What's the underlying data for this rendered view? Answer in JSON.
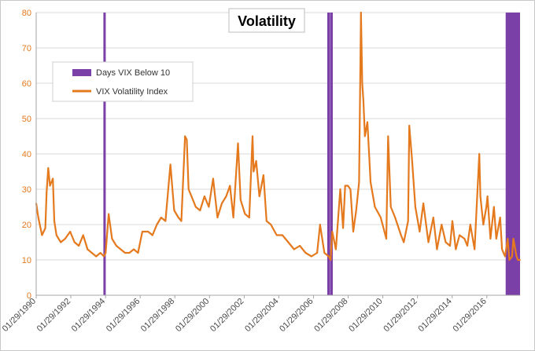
{
  "chart_data": {
    "type": "line",
    "title": "Volatility",
    "xlabel": "",
    "ylabel": "",
    "ylim": [
      0,
      80
    ],
    "yticks": [
      0,
      10,
      20,
      30,
      40,
      50,
      60,
      70,
      80
    ],
    "xlim": [
      "1990-01-29",
      "2017-12-29"
    ],
    "xticks": [
      "01/29/1990",
      "01/29/1992",
      "01/29/1994",
      "01/29/1996",
      "01/29/1998",
      "01/29/2000",
      "01/29/2002",
      "01/29/2004",
      "01/29/2006",
      "01/29/2008",
      "01/29/2010",
      "01/29/2012",
      "01/29/2014",
      "01/29/2016"
    ],
    "grid": true,
    "legend_position": "top-left",
    "colors": {
      "vix": "#e4791e",
      "below10": "#7b3fa8",
      "tick_text": "#e4791e",
      "grid": "#d9d9d9"
    },
    "series": [
      {
        "name": "VIX Volatility Index",
        "kind": "line",
        "x": [
          "1990-01-29",
          "1990-03-15",
          "1990-06-01",
          "1990-08-10",
          "1990-09-05",
          "1990-10-10",
          "1990-11-15",
          "1991-01-15",
          "1991-02-15",
          "1991-04-01",
          "1991-07-01",
          "1991-10-01",
          "1992-01-15",
          "1992-04-15",
          "1992-07-15",
          "1992-10-15",
          "1993-01-15",
          "1993-04-15",
          "1993-07-15",
          "1993-10-15",
          "1993-12-27",
          "1994-02-01",
          "1994-04-05",
          "1994-06-15",
          "1994-09-15",
          "1994-12-15",
          "1995-03-15",
          "1995-06-15",
          "1995-09-15",
          "1995-12-15",
          "1996-03-15",
          "1996-07-15",
          "1996-10-15",
          "1997-01-15",
          "1997-04-15",
          "1997-07-15",
          "1997-10-28",
          "1998-01-15",
          "1998-04-15",
          "1998-06-15",
          "1998-08-31",
          "1998-10-08",
          "1998-11-15",
          "1999-01-15",
          "1999-04-15",
          "1999-07-15",
          "1999-10-15",
          "2000-01-15",
          "2000-04-14",
          "2000-07-15",
          "2000-10-15",
          "2001-01-15",
          "2001-04-04",
          "2001-06-15",
          "2001-09-21",
          "2001-11-15",
          "2002-02-15",
          "2002-05-15",
          "2002-07-24",
          "2002-08-15",
          "2002-10-09",
          "2002-12-15",
          "2003-03-11",
          "2003-05-15",
          "2003-08-15",
          "2003-12-15",
          "2004-04-15",
          "2004-08-15",
          "2004-12-15",
          "2005-04-15",
          "2005-08-15",
          "2005-12-15",
          "2006-04-15",
          "2006-06-15",
          "2006-09-15",
          "2006-12-15",
          "2007-01-24",
          "2007-02-27",
          "2007-05-15",
          "2007-08-16",
          "2007-10-15",
          "2007-11-26",
          "2008-01-22",
          "2008-03-17",
          "2008-05-15",
          "2008-07-15",
          "2008-09-15",
          "2008-10-24",
          "2008-11-20",
          "2008-12-15",
          "2009-01-15",
          "2009-03-09",
          "2009-05-15",
          "2009-08-15",
          "2009-12-15",
          "2010-04-12",
          "2010-05-20",
          "2010-07-15",
          "2010-10-15",
          "2011-02-15",
          "2011-04-15",
          "2011-07-15",
          "2011-08-08",
          "2011-10-03",
          "2011-12-15",
          "2012-03-15",
          "2012-06-01",
          "2012-09-15",
          "2012-12-28",
          "2013-03-15",
          "2013-06-20",
          "2013-09-15",
          "2013-12-15",
          "2014-02-03",
          "2014-04-15",
          "2014-07-03",
          "2014-10-15",
          "2014-12-15",
          "2015-02-15",
          "2015-05-15",
          "2015-08-24",
          "2015-09-15",
          "2015-11-15",
          "2016-01-20",
          "2016-02-11",
          "2016-04-15",
          "2016-06-27",
          "2016-08-15",
          "2016-11-04",
          "2016-12-15",
          "2017-02-15",
          "2017-04-13",
          "2017-05-17",
          "2017-07-15",
          "2017-08-10",
          "2017-10-15",
          "2017-11-15",
          "2017-12-29"
        ],
        "y": [
          26,
          22,
          17,
          19,
          29,
          36,
          31,
          33,
          21,
          17,
          15,
          16,
          18,
          15,
          14,
          17,
          13,
          12,
          11,
          12,
          11,
          12,
          23,
          16,
          14,
          13,
          12,
          12,
          13,
          12,
          18,
          18,
          17,
          20,
          22,
          21,
          37,
          24,
          22,
          21,
          45,
          44,
          30,
          28,
          25,
          24,
          28,
          25,
          33,
          22,
          26,
          28,
          31,
          22,
          43,
          27,
          23,
          22,
          45,
          35,
          38,
          28,
          34,
          21,
          20,
          17,
          17,
          15,
          13,
          14,
          12,
          11,
          12,
          20,
          12,
          11,
          10,
          18,
          13,
          30,
          19,
          31,
          31,
          30,
          18,
          24,
          32,
          80,
          60,
          55,
          45,
          49,
          32,
          25,
          22,
          16,
          45,
          25,
          22,
          17,
          15,
          21,
          48,
          39,
          25,
          18,
          26,
          15,
          22,
          13,
          20,
          15,
          14,
          21,
          13,
          17,
          16,
          14,
          20,
          13,
          40,
          28,
          20,
          25,
          28,
          16,
          25,
          16,
          22,
          13,
          11,
          16,
          10,
          11,
          16,
          11,
          10,
          10
        ]
      },
      {
        "name": "Days VIX Below 10",
        "kind": "bands",
        "periods": [
          [
            "1993-12-15",
            "1994-02-01"
          ],
          [
            "2006-11-15",
            "2007-01-15"
          ],
          [
            "2007-01-20",
            "2007-03-05"
          ],
          [
            "2017-03-01",
            "2017-12-29"
          ]
        ]
      }
    ]
  }
}
